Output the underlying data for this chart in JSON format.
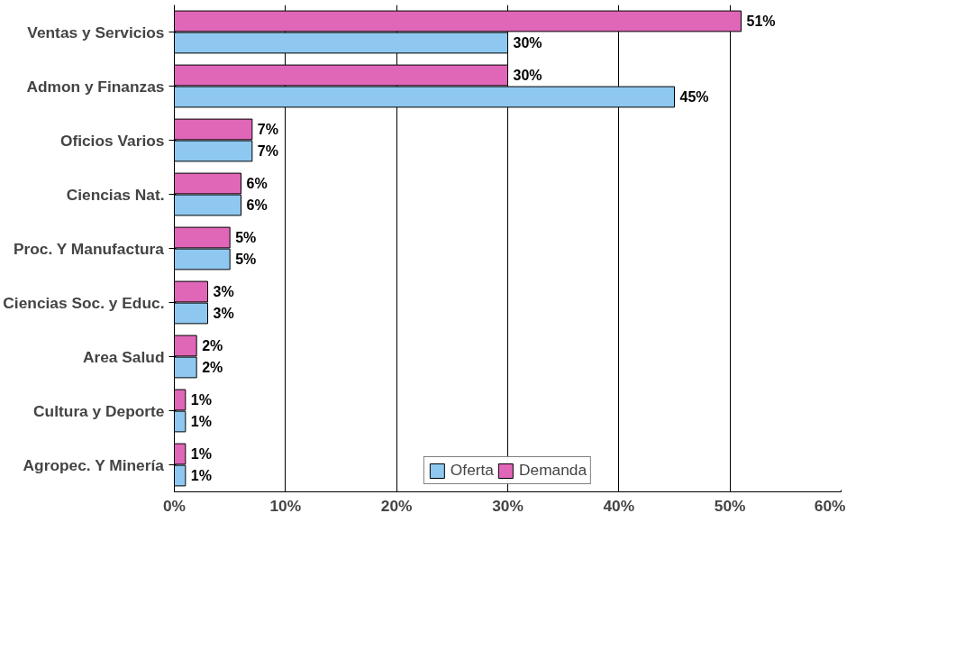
{
  "chart_data": {
    "type": "bar",
    "orientation": "horizontal",
    "categories": [
      "Ventas y Servicios",
      "Admon y Finanzas",
      "Oficios Varios",
      "Ciencias Nat.",
      "Proc. Y Manufactura",
      "Ciencias Soc. y Educ.",
      "Area Salud",
      "Cultura y Deporte",
      "Agropec. Y Minería"
    ],
    "series": [
      {
        "name": "Oferta",
        "color": "#8ec8f0",
        "values": [
          30,
          45,
          7,
          6,
          5,
          3,
          2,
          1,
          1
        ],
        "value_labels": [
          "30%",
          "45%",
          "7%",
          "6%",
          "5%",
          "3%",
          "2%",
          "1%",
          "1%"
        ]
      },
      {
        "name": "Demanda",
        "color": "#e066b8",
        "values": [
          51,
          30,
          7,
          6,
          5,
          3,
          2,
          1,
          1
        ],
        "value_labels": [
          "51%",
          "30%",
          "7%",
          "6%",
          "5%",
          "3%",
          "2%",
          "1%",
          "1%"
        ]
      }
    ],
    "xlim": [
      0,
      60
    ],
    "xticks": [
      {
        "value": 0,
        "label": "0%"
      },
      {
        "value": 10,
        "label": "10%"
      },
      {
        "value": 20,
        "label": "20%"
      },
      {
        "value": 30,
        "label": "30%"
      },
      {
        "value": 40,
        "label": "40%"
      },
      {
        "value": 50,
        "label": "50%"
      },
      {
        "value": 60,
        "label": "60%"
      }
    ],
    "grid": "x",
    "legend": "bottom"
  }
}
